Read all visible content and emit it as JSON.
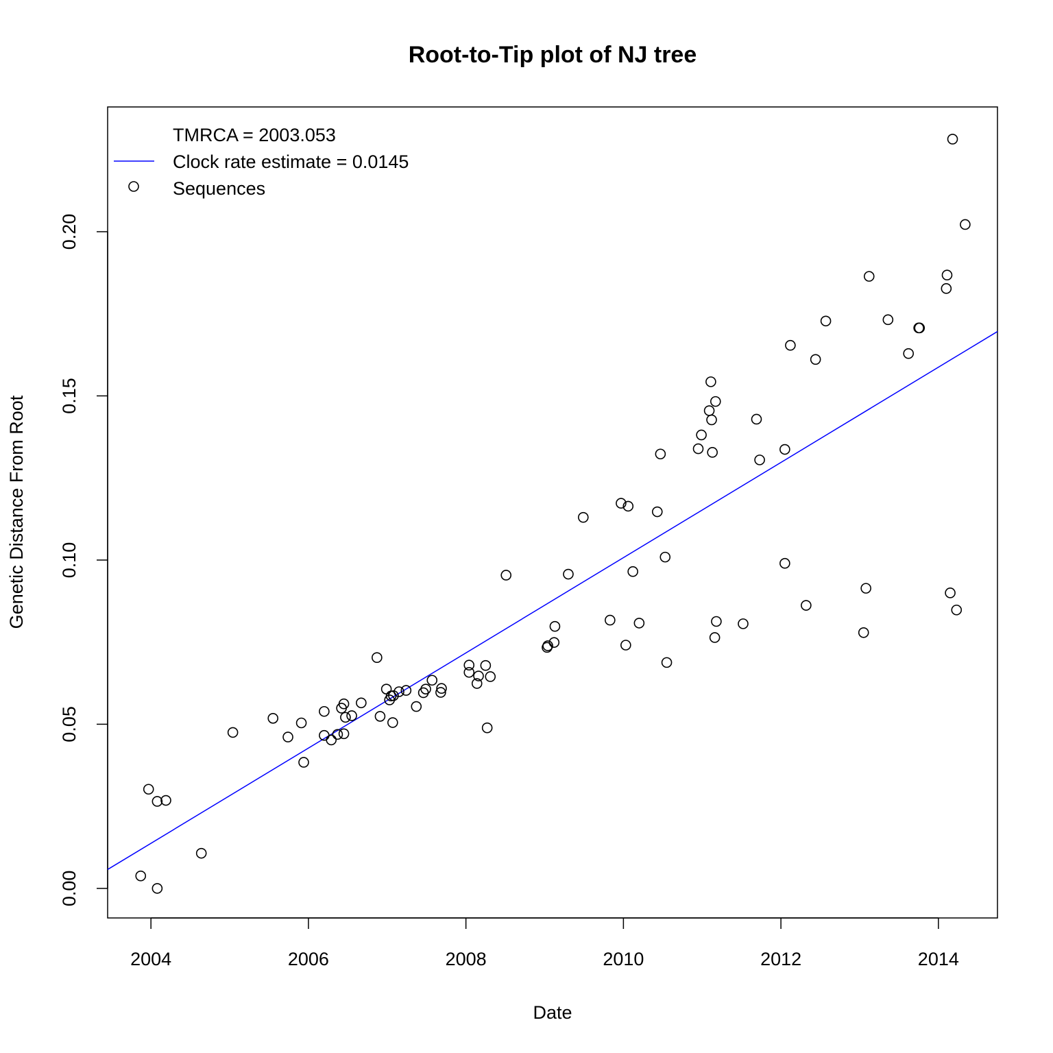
{
  "chart_data": {
    "type": "scatter",
    "title": "Root-to-Tip plot of NJ tree",
    "xlabel": "Date",
    "ylabel": "Genetic Distance From Root",
    "xlim": [
      2003.45,
      2014.75
    ],
    "ylim": [
      -0.009,
      0.238
    ],
    "xticks": [
      2004,
      2006,
      2008,
      2010,
      2012,
      2014
    ],
    "yticks": [
      0.0,
      0.05,
      0.1,
      0.15,
      0.2
    ],
    "xtick_labels": [
      "2004",
      "2006",
      "2008",
      "2010",
      "2012",
      "2014"
    ],
    "ytick_labels": [
      "0.00",
      "0.05",
      "0.10",
      "0.15",
      "0.20"
    ],
    "grid": false,
    "legend": {
      "position": "top-left",
      "entries": [
        {
          "label": "TMRCA = 2003.053",
          "symbol": "none"
        },
        {
          "label": "Clock rate estimate = 0.0145",
          "symbol": "line",
          "color": "#0000ff"
        },
        {
          "label": "Sequences",
          "symbol": "circle",
          "color": "#000000"
        }
      ]
    },
    "regression_line": {
      "color": "#0000ff",
      "slope": 0.0145,
      "x_intercept": 2003.053
    },
    "series": [
      {
        "name": "Sequences",
        "color": "#000000",
        "x": [
          2003.87,
          2003.97,
          2004.08,
          2004.08,
          2004.19,
          2004.64,
          2005.04,
          2005.55,
          2005.74,
          2005.91,
          2005.94,
          2006.2,
          2006.2,
          2006.29,
          2006.37,
          2006.42,
          2006.45,
          2006.45,
          2006.47,
          2006.55,
          2006.67,
          2006.87,
          2006.91,
          2006.99,
          2007.03,
          2007.05,
          2007.07,
          2007.08,
          2007.15,
          2007.24,
          2007.37,
          2007.46,
          2007.49,
          2007.57,
          2007.68,
          2007.69,
          2008.04,
          2008.04,
          2008.14,
          2008.16,
          2008.25,
          2008.27,
          2008.31,
          2008.51,
          2009.03,
          2009.04,
          2009.12,
          2009.13,
          2009.3,
          2009.49,
          2009.83,
          2009.97,
          2010.03,
          2010.06,
          2010.12,
          2010.2,
          2010.43,
          2010.47,
          2010.53,
          2010.55,
          2010.95,
          2010.99,
          2011.09,
          2011.11,
          2011.12,
          2011.13,
          2011.16,
          2011.17,
          2011.18,
          2011.52,
          2011.69,
          2011.73,
          2012.05,
          2012.05,
          2012.12,
          2012.32,
          2012.44,
          2012.57,
          2013.05,
          2013.08,
          2013.12,
          2013.36,
          2013.62,
          2013.75,
          2013.76,
          2014.1,
          2014.11,
          2014.15,
          2014.18,
          2014.23,
          2014.34
        ],
        "y": [
          0.0038,
          0.0302,
          0.0,
          0.0265,
          0.0268,
          0.0107,
          0.0475,
          0.0518,
          0.0461,
          0.0504,
          0.0384,
          0.0539,
          0.0466,
          0.0452,
          0.0469,
          0.0549,
          0.0562,
          0.0471,
          0.0521,
          0.0526,
          0.0565,
          0.0703,
          0.0524,
          0.0607,
          0.0574,
          0.0586,
          0.0505,
          0.0587,
          0.0599,
          0.0603,
          0.0554,
          0.0596,
          0.0607,
          0.0634,
          0.0597,
          0.0609,
          0.068,
          0.0658,
          0.0624,
          0.0647,
          0.0679,
          0.0489,
          0.0645,
          0.0954,
          0.0734,
          0.0739,
          0.0749,
          0.0798,
          0.0957,
          0.113,
          0.0817,
          0.1173,
          0.0741,
          0.1164,
          0.0965,
          0.0808,
          0.1147,
          0.1323,
          0.1009,
          0.0688,
          0.1339,
          0.1381,
          0.1455,
          0.1543,
          0.1427,
          0.1328,
          0.0764,
          0.1483,
          0.0813,
          0.0806,
          0.1429,
          0.1305,
          0.1337,
          0.099,
          0.1654,
          0.0862,
          0.1611,
          0.1728,
          0.0779,
          0.0914,
          0.1864,
          0.1732,
          0.1629,
          0.1707,
          0.1707,
          0.1827,
          0.1868,
          0.09,
          0.2282,
          0.0848,
          0.2022
        ]
      }
    ]
  }
}
